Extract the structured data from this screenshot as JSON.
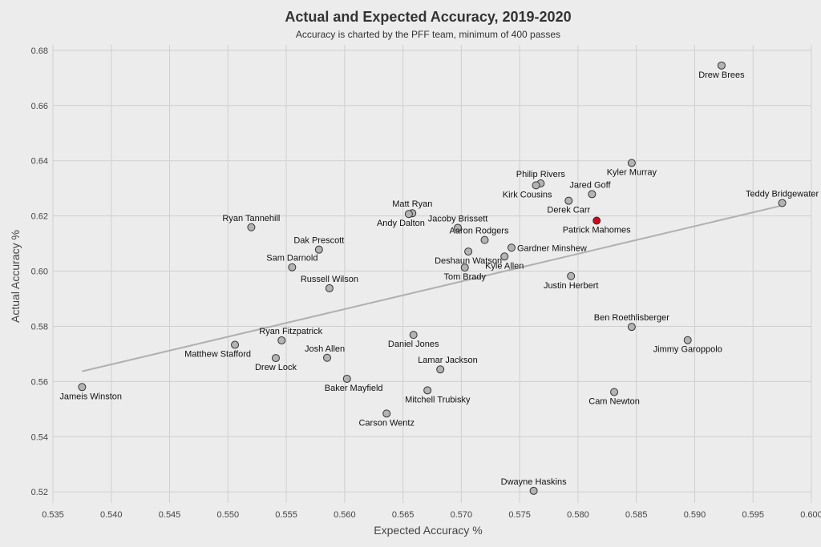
{
  "colors": {
    "background": "#ececec",
    "grid": "#cfcfcf",
    "point": "#b3b3b3",
    "point_edge": "#333333",
    "highlight": "#cc0a1e",
    "trend": "#b0b0b0"
  },
  "chart_data": {
    "type": "scatter",
    "title": "Actual and Expected Accuracy, 2019-2020",
    "subtitle": "Accuracy is charted by the PFF team, minimum of 400 passes",
    "xlabel": "Expected Accuracy %",
    "ylabel": "Actual Accuracy %",
    "xlim": [
      0.535,
      0.6
    ],
    "ylim": [
      0.516,
      0.682
    ],
    "grid": true,
    "x_ticks": [
      "0.535",
      "0.540",
      "0.545",
      "0.550",
      "0.555",
      "0.560",
      "0.565",
      "0.570",
      "0.575",
      "0.580",
      "0.585",
      "0.590",
      "0.595",
      "0.600"
    ],
    "y_ticks": [
      "0.52",
      "0.54",
      "0.56",
      "0.58",
      "0.60",
      "0.62",
      "0.64",
      "0.66",
      "0.68"
    ],
    "trendline": {
      "x": [
        0.5375,
        0.5975
      ],
      "y": [
        0.5637,
        0.6238
      ]
    },
    "points": [
      {
        "name": "Drew Brees",
        "x": 0.5923,
        "y": 0.6745,
        "label_pos": "below"
      },
      {
        "name": "Kyler Murray",
        "x": 0.5846,
        "y": 0.6392,
        "label_pos": "below"
      },
      {
        "name": "Teddy Bridgewater",
        "x": 0.5975,
        "y": 0.6247,
        "label_pos": "above"
      },
      {
        "name": "Philip Rivers",
        "x": 0.5768,
        "y": 0.6318,
        "label_pos": "above"
      },
      {
        "name": "Kirk Cousins",
        "x": 0.5764,
        "y": 0.6311,
        "label_pos": "below-left"
      },
      {
        "name": "Jared Goff",
        "x": 0.5812,
        "y": 0.6279,
        "label_pos": "above-right"
      },
      {
        "name": "Derek Carr",
        "x": 0.5792,
        "y": 0.6255,
        "label_pos": "below"
      },
      {
        "name": "Patrick Mahomes",
        "x": 0.5816,
        "y": 0.6183,
        "label_pos": "below",
        "highlight": true
      },
      {
        "name": "Matt Ryan",
        "x": 0.5658,
        "y": 0.621,
        "label_pos": "above"
      },
      {
        "name": "Andy Dalton",
        "x": 0.5655,
        "y": 0.6207,
        "label_pos": "below-left"
      },
      {
        "name": "Ryan Tannehill",
        "x": 0.552,
        "y": 0.6159,
        "label_pos": "above"
      },
      {
        "name": "Jacoby Brissett",
        "x": 0.5697,
        "y": 0.6157,
        "label_pos": "above"
      },
      {
        "name": "Aaron Rodgers",
        "x": 0.572,
        "y": 0.6113,
        "label_pos": "above-left"
      },
      {
        "name": "Gardner Minshew",
        "x": 0.5743,
        "y": 0.6085,
        "label_pos": "right"
      },
      {
        "name": "Deshaun Watson",
        "x": 0.5706,
        "y": 0.6071,
        "label_pos": "below"
      },
      {
        "name": "Kyle Allen",
        "x": 0.5737,
        "y": 0.6053,
        "label_pos": "below"
      },
      {
        "name": "Tom Brady",
        "x": 0.5703,
        "y": 0.6013,
        "label_pos": "below"
      },
      {
        "name": "Justin Herbert",
        "x": 0.5794,
        "y": 0.5982,
        "label_pos": "below"
      },
      {
        "name": "Dak Prescott",
        "x": 0.5578,
        "y": 0.6078,
        "label_pos": "above"
      },
      {
        "name": "Sam Darnold",
        "x": 0.5555,
        "y": 0.6014,
        "label_pos": "above"
      },
      {
        "name": "Russell Wilson",
        "x": 0.5587,
        "y": 0.5938,
        "label_pos": "above"
      },
      {
        "name": "Ben Roethlisberger",
        "x": 0.5846,
        "y": 0.5798,
        "label_pos": "above"
      },
      {
        "name": "Jimmy Garoppolo",
        "x": 0.5894,
        "y": 0.575,
        "label_pos": "below"
      },
      {
        "name": "Ryan Fitzpatrick",
        "x": 0.5546,
        "y": 0.5749,
        "label_pos": "above-right"
      },
      {
        "name": "Daniel Jones",
        "x": 0.5659,
        "y": 0.5769,
        "label_pos": "below"
      },
      {
        "name": "Matthew Stafford",
        "x": 0.5506,
        "y": 0.5733,
        "label_pos": "below-left"
      },
      {
        "name": "Josh Allen",
        "x": 0.5585,
        "y": 0.5686,
        "label_pos": "above-right"
      },
      {
        "name": "Drew Lock",
        "x": 0.5541,
        "y": 0.5685,
        "label_pos": "below"
      },
      {
        "name": "Lamar Jackson",
        "x": 0.5682,
        "y": 0.5644,
        "label_pos": "above-right"
      },
      {
        "name": "Baker Mayfield",
        "x": 0.5602,
        "y": 0.561,
        "label_pos": "below-right"
      },
      {
        "name": "Jameis Winston",
        "x": 0.5375,
        "y": 0.558,
        "label_pos": "below-right"
      },
      {
        "name": "Mitchell Trubisky",
        "x": 0.5671,
        "y": 0.5568,
        "label_pos": "below-right"
      },
      {
        "name": "Cam Newton",
        "x": 0.5831,
        "y": 0.5562,
        "label_pos": "below"
      },
      {
        "name": "Carson Wentz",
        "x": 0.5636,
        "y": 0.5484,
        "label_pos": "below"
      },
      {
        "name": "Dwayne Haskins",
        "x": 0.5762,
        "y": 0.5204,
        "label_pos": "above"
      }
    ]
  }
}
